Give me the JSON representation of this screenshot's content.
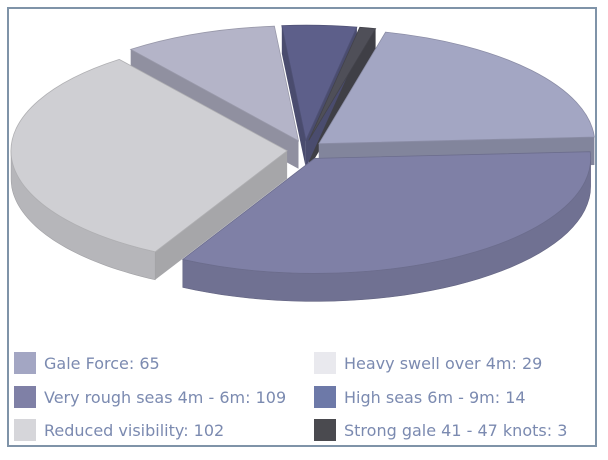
{
  "chart_data": {
    "type": "pie",
    "title": "",
    "exploded": true,
    "three_d": true,
    "slices": [
      {
        "label": "Gale Force",
        "value": 65,
        "color": "#a3a6c3"
      },
      {
        "label": "Very rough seas 4m - 6m",
        "value": 109,
        "color": "#7f80a6"
      },
      {
        "label": "Reduced visibility",
        "value": 102,
        "color": "#cfcfd3"
      },
      {
        "label": "Heavy swell over 4m",
        "value": 29,
        "color": "#b4b4c8"
      },
      {
        "label": "High seas 6m - 9m",
        "value": 14,
        "color": "#5d5f8a"
      },
      {
        "label": "Strong gale 41 - 47 knots",
        "value": 3,
        "color": "#4f4f58"
      }
    ],
    "legend_position": "bottom",
    "legend": [
      {
        "text": "Gale Force: 65",
        "color": "#a3a6c3"
      },
      {
        "text": "Heavy swell over 4m: 29",
        "color": "#e9e9ee"
      },
      {
        "text": "Very rough seas 4m - 6m: 109",
        "color": "#7f80a6"
      },
      {
        "text": "High seas 6m - 9m: 14",
        "color": "#6d79a8"
      },
      {
        "text": "Reduced visibility: 102",
        "color": "#d6d6da"
      },
      {
        "text": "Strong gale 41 - 47 knots: 3",
        "color": "#4a4a4f"
      }
    ]
  }
}
